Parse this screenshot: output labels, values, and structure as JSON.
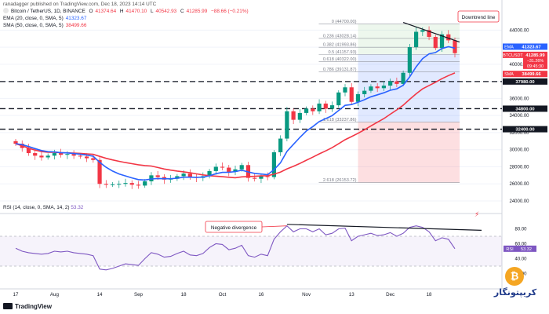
{
  "header": {
    "top": "ranadagger published on TradingView.com, Dec 18, 2023 14:14 UTC",
    "pair": "Bitcoin / TetherUS, 1D, BINANCE",
    "ohlc": {
      "o_label": "O",
      "o": "41374.64",
      "h_label": "H",
      "h": "41470.10",
      "l_label": "L",
      "l": "40542.93",
      "c_label": "C",
      "c": "41285.99",
      "chg": "−88.66 (−0.21%)"
    },
    "ema_label": "EMA (20, close, 0, SMA, 5)",
    "ema_value": "41323.67",
    "sma_label": "SMA (50, close, 0, SMA, 5)",
    "sma_value": "38499.66",
    "rsi_label": "RSI (14, close, 0, SMA, 14, 2)",
    "rsi_value": "53.32"
  },
  "footer": {
    "logo": "TradingView"
  },
  "brand": {
    "glyph": "₿",
    "text": "کریپتونگار"
  },
  "chart_data": {
    "type": "candlestick",
    "x_ticks": [
      "17",
      "Aug",
      "14",
      "Sep",
      "18",
      "Oct",
      "16",
      "Nov",
      "13",
      "Dec",
      "18"
    ],
    "y_ticks": [
      "44000.00",
      "42000.00",
      "40000.00",
      "38000.00",
      "36000.00",
      "34000.00",
      "32000.00",
      "30000.00",
      "28000.00",
      "26000.00",
      "24000.00"
    ],
    "ylim": [
      24000,
      45500
    ],
    "ohlc_path": [
      30700,
      30200,
      29600,
      29300,
      29100,
      29300,
      29600,
      29400,
      29500,
      29300,
      29200,
      29000,
      28800,
      26000,
      25900,
      25950,
      26000,
      26100,
      25900,
      25800,
      26300,
      27000,
      26800,
      26500,
      26600,
      26900,
      27200,
      26800,
      26700,
      26900,
      27500,
      28000,
      27900,
      27400,
      27700,
      28200,
      26700,
      26600,
      26900,
      26800,
      29700,
      31300,
      34500,
      33500,
      34300,
      34800,
      34500,
      35400,
      34800,
      35200,
      36700,
      37300,
      35600,
      36500,
      36900,
      37400,
      37200,
      37500,
      38000,
      37700,
      39000,
      42000,
      43800,
      44000,
      43200,
      41900,
      43500,
      42800,
      41300
    ],
    "price_labels": [
      {
        "text": "EMA",
        "value": "41323.67",
        "color": "#2962ff"
      },
      {
        "text": "BTCUSDT",
        "value": "41285.99",
        "extra1": "−31.26%",
        "extra2": "09:45:30",
        "color": "#f23645"
      },
      {
        "text": "SMA",
        "value": "38499.66",
        "color": "#f23645"
      },
      {
        "text": "",
        "value": "37980.00",
        "color": "#131722"
      },
      {
        "text": "",
        "value": "34800.00",
        "color": "#131722"
      },
      {
        "text": "",
        "value": "32400.00",
        "color": "#131722"
      }
    ],
    "levels": [
      37980,
      34800,
      32400
    ],
    "fib": [
      {
        "label": "0 (44700.00)",
        "value": 44700
      },
      {
        "label": "0.236 (43028.14)",
        "value": 43028
      },
      {
        "label": "0.382 (41993.86)",
        "value": 41994
      },
      {
        "label": "0.5 (41157.93)",
        "value": 41158
      },
      {
        "label": "0.618 (40322.00)",
        "value": 40322
      },
      {
        "label": "0.786 (39131.87)",
        "value": 39132
      },
      {
        "label": "1.618 (33237.86)",
        "value": 33238
      },
      {
        "label": "2.618 (26153.72)",
        "value": 26154
      }
    ],
    "annotations": {
      "downtrend": "Downtrend line",
      "divergence": "Negative divergence"
    },
    "rsi": {
      "ticks": [
        "80.00",
        "60.00",
        "40.00",
        "20.00"
      ],
      "ylim": [
        10,
        90
      ],
      "values": [
        54,
        50,
        48,
        47,
        46,
        47,
        50,
        49,
        50,
        48,
        47,
        46,
        44,
        26,
        25,
        27,
        30,
        33,
        32,
        31,
        40,
        48,
        46,
        42,
        43,
        47,
        50,
        45,
        44,
        47,
        55,
        60,
        59,
        52,
        54,
        58,
        44,
        42,
        46,
        44,
        66,
        76,
        84,
        76,
        80,
        80,
        76,
        80,
        72,
        74,
        80,
        81,
        64,
        70,
        72,
        74,
        71,
        72,
        75,
        70,
        74,
        82,
        84,
        82,
        76,
        64,
        68,
        66,
        53.32
      ],
      "overbought": 70,
      "oversold": 30
    }
  }
}
